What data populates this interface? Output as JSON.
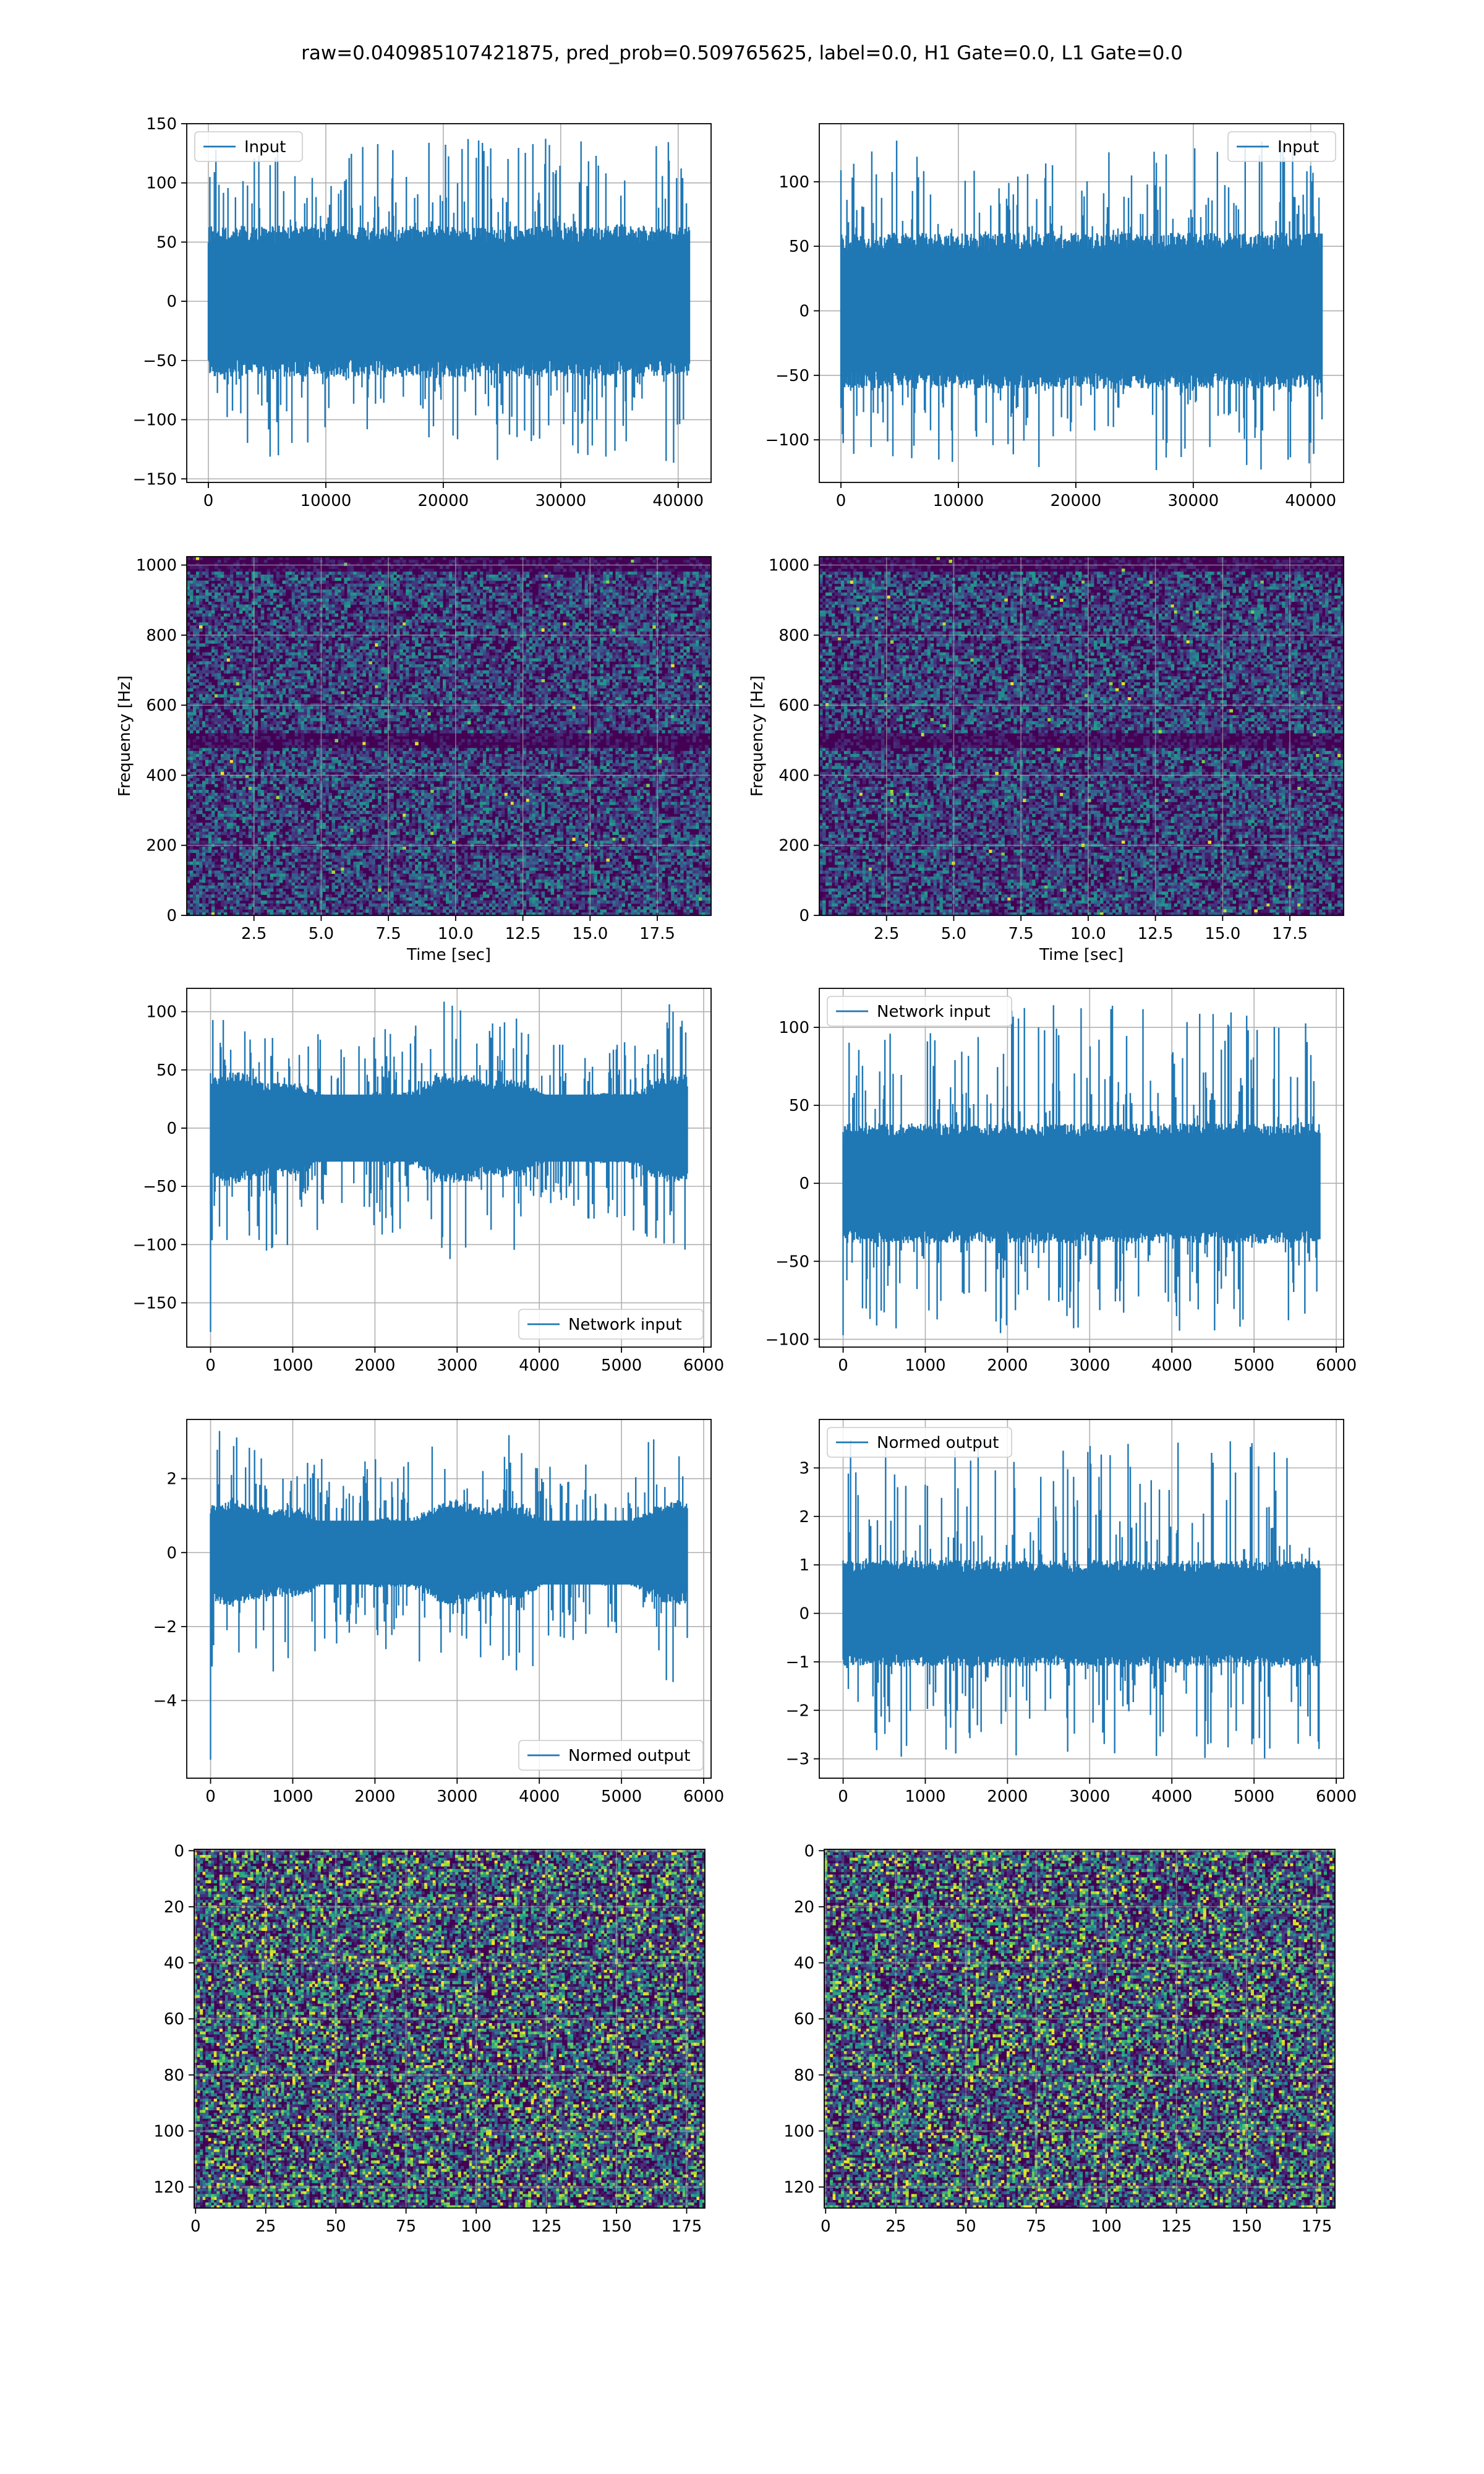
{
  "figure": {
    "title": "raw=0.040985107421875, pred_prob=0.509765625, label=0.0, H1 Gate=0.0, L1 Gate=0.0"
  },
  "colors": {
    "line": "#1f77b4",
    "grid": "#b0b0b0",
    "viridis": [
      "#440154",
      "#472d7b",
      "#3b528b",
      "#2c728e",
      "#21918c",
      "#28ae80",
      "#5ec962",
      "#addc30",
      "#fde725"
    ]
  },
  "chart_data": [
    {
      "type": "line",
      "name": "input-h1",
      "legend": {
        "label": "Input",
        "loc": "upper left"
      },
      "xlim": [
        -1843,
        42803
      ],
      "ylim": [
        -153,
        150
      ],
      "xticks": [
        0,
        10000,
        20000,
        30000,
        40000
      ],
      "xticklabels": [
        "0",
        "10000",
        "20000",
        "30000",
        "40000"
      ],
      "yticks": [
        -150,
        -100,
        -50,
        0,
        50,
        100,
        150
      ],
      "yticklabels": [
        "−150",
        "−100",
        "−50",
        "0",
        "50",
        "100",
        "150"
      ],
      "signal": {
        "x0": 0,
        "x1": 40960,
        "bodyLo": -58,
        "bodyHi": 58,
        "peakLo": -138,
        "peakHi": 138,
        "envelope": "flat"
      },
      "grid": true,
      "xlabel": "",
      "ylabel": ""
    },
    {
      "type": "line",
      "name": "input-l1",
      "legend": {
        "label": "Input",
        "loc": "upper right"
      },
      "xlim": [
        -1843,
        42803
      ],
      "ylim": [
        -133,
        145
      ],
      "xticks": [
        0,
        10000,
        20000,
        30000,
        40000
      ],
      "xticklabels": [
        "0",
        "10000",
        "20000",
        "30000",
        "40000"
      ],
      "yticks": [
        -100,
        -50,
        0,
        50,
        100
      ],
      "yticklabels": [
        "−100",
        "−50",
        "0",
        "50",
        "100"
      ],
      "signal": {
        "x0": 0,
        "x1": 40960,
        "bodyLo": -55,
        "bodyHi": 55,
        "peakLo": -125,
        "peakHi": 133,
        "envelope": "flat"
      },
      "grid": true,
      "xlabel": "",
      "ylabel": ""
    },
    {
      "type": "heatmap",
      "name": "spectrogram-h1",
      "xlim": [
        0,
        19.5
      ],
      "ylim": [
        0,
        1024
      ],
      "xticks": [
        2.5,
        5,
        7.5,
        10,
        12.5,
        15,
        17.5
      ],
      "xticklabels": [
        "2.5",
        "5.0",
        "7.5",
        "10.0",
        "12.5",
        "15.0",
        "17.5"
      ],
      "yticks": [
        0,
        200,
        400,
        600,
        800,
        1000
      ],
      "yticklabels": [
        "0",
        "200",
        "400",
        "600",
        "800",
        "1000"
      ],
      "xlabel": "Time [sec]",
      "ylabel": "Frequency [Hz]",
      "grid": true,
      "bands": [
        500,
        1000
      ],
      "colormap": "viridis"
    },
    {
      "type": "heatmap",
      "name": "spectrogram-l1",
      "xlim": [
        0,
        19.5
      ],
      "ylim": [
        0,
        1024
      ],
      "xticks": [
        2.5,
        5,
        7.5,
        10,
        12.5,
        15,
        17.5
      ],
      "xticklabels": [
        "2.5",
        "5.0",
        "7.5",
        "10.0",
        "12.5",
        "15.0",
        "17.5"
      ],
      "yticks": [
        0,
        200,
        400,
        600,
        800,
        1000
      ],
      "yticklabels": [
        "0",
        "200",
        "400",
        "600",
        "800",
        "1000"
      ],
      "xlabel": "Time [sec]",
      "ylabel": "Frequency [Hz]",
      "grid": true,
      "bands": [
        500,
        1000
      ],
      "colormap": "viridis"
    },
    {
      "type": "line",
      "name": "network-input-h1",
      "legend": {
        "label": "Network input",
        "loc": "lower right"
      },
      "xlim": [
        -290,
        6090
      ],
      "ylim": [
        -188,
        120
      ],
      "xticks": [
        0,
        1000,
        2000,
        3000,
        4000,
        5000,
        6000
      ],
      "xticklabels": [
        "0",
        "1000",
        "2000",
        "3000",
        "4000",
        "5000",
        "6000"
      ],
      "yticks": [
        -150,
        -100,
        -50,
        0,
        50,
        100
      ],
      "yticklabels": [
        "−150",
        "−100",
        "−50",
        "0",
        "50",
        "100"
      ],
      "signal": {
        "x0": 0,
        "x1": 5800,
        "bodyLo": -40,
        "bodyHi": 40,
        "peakLo": -112,
        "peakHi": 105,
        "envelope": "bumpy",
        "startSpike": -175
      },
      "grid": true,
      "xlabel": "",
      "ylabel": ""
    },
    {
      "type": "line",
      "name": "network-input-l1",
      "legend": {
        "label": "Network input",
        "loc": "upper left"
      },
      "xlim": [
        -290,
        6090
      ],
      "ylim": [
        -105,
        125
      ],
      "xticks": [
        0,
        1000,
        2000,
        3000,
        4000,
        5000,
        6000
      ],
      "xticklabels": [
        "0",
        "1000",
        "2000",
        "3000",
        "4000",
        "5000",
        "6000"
      ],
      "yticks": [
        -100,
        -50,
        0,
        50,
        100
      ],
      "yticklabels": [
        "−100",
        "−50",
        "0",
        "50",
        "100"
      ],
      "signal": {
        "x0": 0,
        "x1": 5800,
        "bodyLo": -35,
        "bodyHi": 35,
        "peakLo": -98,
        "peakHi": 115,
        "envelope": "flat"
      },
      "grid": true,
      "xlabel": "",
      "ylabel": ""
    },
    {
      "type": "line",
      "name": "normed-output-h1",
      "legend": {
        "label": "Normed output",
        "loc": "lower right"
      },
      "xlim": [
        -290,
        6090
      ],
      "ylim": [
        -6.1,
        3.6
      ],
      "xticks": [
        0,
        1000,
        2000,
        3000,
        4000,
        5000,
        6000
      ],
      "xticklabels": [
        "0",
        "1000",
        "2000",
        "3000",
        "4000",
        "5000",
        "6000"
      ],
      "yticks": [
        -4,
        -2,
        0,
        2
      ],
      "yticklabels": [
        "−4",
        "−2",
        "0",
        "2"
      ],
      "signal": {
        "x0": 0,
        "x1": 5800,
        "bodyLo": -1.2,
        "bodyHi": 1.2,
        "peakLo": -3.5,
        "peakHi": 3.3,
        "envelope": "bumpy",
        "startSpike": -5.6
      },
      "grid": true,
      "xlabel": "",
      "ylabel": ""
    },
    {
      "type": "line",
      "name": "normed-output-l1",
      "legend": {
        "label": "Normed output",
        "loc": "upper left"
      },
      "xlim": [
        -290,
        6090
      ],
      "ylim": [
        -3.4,
        4.0
      ],
      "xticks": [
        0,
        1000,
        2000,
        3000,
        4000,
        5000,
        6000
      ],
      "xticklabels": [
        "0",
        "1000",
        "2000",
        "3000",
        "4000",
        "5000",
        "6000"
      ],
      "yticks": [
        -3,
        -2,
        -1,
        0,
        1,
        2,
        3
      ],
      "yticklabels": [
        "−3",
        "−2",
        "−1",
        "0",
        "1",
        "2",
        "3"
      ],
      "signal": {
        "x0": 0,
        "x1": 5800,
        "bodyLo": -1.0,
        "bodyHi": 1.0,
        "peakLo": -3.0,
        "peakHi": 3.6,
        "envelope": "flat"
      },
      "grid": true,
      "xlabel": "",
      "ylabel": ""
    },
    {
      "type": "heatmap",
      "name": "matrix-h1",
      "xlim": [
        -0.5,
        181.5
      ],
      "ylim": [
        127.5,
        -0.5
      ],
      "xticks": [
        0,
        25,
        50,
        75,
        100,
        125,
        150,
        175
      ],
      "xticklabels": [
        "0",
        "25",
        "50",
        "75",
        "100",
        "125",
        "150",
        "175"
      ],
      "yticks": [
        0,
        20,
        40,
        60,
        80,
        100,
        120
      ],
      "yticklabels": [
        "0",
        "20",
        "40",
        "60",
        "80",
        "100",
        "120"
      ],
      "grid": true,
      "colormap": "viridis",
      "cells": [
        182,
        128
      ],
      "xlabel": "",
      "ylabel": ""
    },
    {
      "type": "heatmap",
      "name": "matrix-l1",
      "xlim": [
        -0.5,
        181.5
      ],
      "ylim": [
        127.5,
        -0.5
      ],
      "xticks": [
        0,
        25,
        50,
        75,
        100,
        125,
        150,
        175
      ],
      "xticklabels": [
        "0",
        "25",
        "50",
        "75",
        "100",
        "125",
        "150",
        "175"
      ],
      "yticks": [
        0,
        20,
        40,
        60,
        80,
        100,
        120
      ],
      "yticklabels": [
        "0",
        "20",
        "40",
        "60",
        "80",
        "100",
        "120"
      ],
      "grid": true,
      "colormap": "viridis",
      "cells": [
        182,
        128
      ],
      "xlabel": "",
      "ylabel": ""
    }
  ]
}
